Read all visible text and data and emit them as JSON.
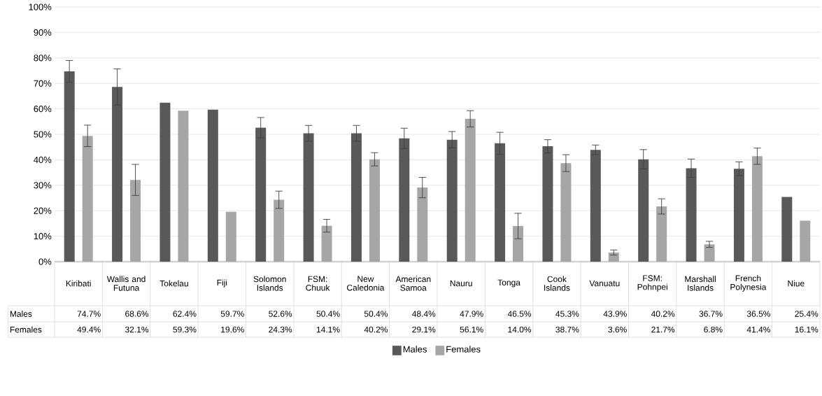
{
  "chart_data": {
    "type": "bar",
    "categories": [
      "Kiribati",
      "Wallis and Futuna",
      "Tokelau",
      "Fiji",
      "Solomon Islands",
      "FSM: Chuuk",
      "New Caledonia",
      "American Samoa",
      "Nauru",
      "Tonga",
      "Cook Islands",
      "Vanuatu",
      "FSM: Pohnpei",
      "Marshall Islands",
      "French Polynesia",
      "Niue"
    ],
    "series": [
      {
        "name": "Males",
        "color": "#595959",
        "values": [
          74.7,
          68.6,
          62.4,
          59.7,
          52.6,
          50.4,
          50.4,
          48.4,
          47.9,
          46.5,
          45.3,
          43.9,
          40.2,
          36.7,
          36.5,
          25.4
        ],
        "errors": [
          4.3,
          7.1,
          null,
          null,
          4.0,
          3.1,
          3.1,
          4.0,
          3.2,
          4.3,
          2.6,
          1.9,
          3.8,
          3.6,
          2.7,
          null
        ],
        "value_labels": [
          "74.7%",
          "68.6%",
          "62.4%",
          "59.7%",
          "52.6%",
          "50.4%",
          "50.4%",
          "48.4%",
          "47.9%",
          "46.5%",
          "45.3%",
          "43.9%",
          "40.2%",
          "36.7%",
          "36.5%",
          "25.4%"
        ]
      },
      {
        "name": "Females",
        "color": "#a6a6a6",
        "values": [
          49.4,
          32.1,
          59.3,
          19.6,
          24.3,
          14.1,
          40.2,
          29.1,
          56.1,
          14.0,
          38.7,
          3.6,
          21.7,
          6.8,
          41.4,
          16.1
        ],
        "errors": [
          4.2,
          6.1,
          null,
          null,
          3.4,
          2.5,
          2.6,
          4.0,
          3.2,
          5.0,
          3.3,
          1.0,
          3.0,
          1.2,
          3.2,
          null
        ],
        "value_labels": [
          "49.4%",
          "32.1%",
          "59.3%",
          "19.6%",
          "24.3%",
          "14.1%",
          "40.2%",
          "29.1%",
          "56.1%",
          "14.0%",
          "38.7%",
          "3.6%",
          "21.7%",
          "6.8%",
          "41.4%",
          "16.1%"
        ]
      }
    ],
    "ylim": [
      0,
      100
    ],
    "yticks": [
      {
        "value": 0,
        "label": "0%"
      },
      {
        "value": 10,
        "label": "10%"
      },
      {
        "value": 20,
        "label": "20%"
      },
      {
        "value": 30,
        "label": "30%"
      },
      {
        "value": 40,
        "label": "40%"
      },
      {
        "value": 50,
        "label": "50%"
      },
      {
        "value": 60,
        "label": "60%"
      },
      {
        "value": 70,
        "label": "70%"
      },
      {
        "value": 80,
        "label": "80%"
      },
      {
        "value": 90,
        "label": "90%"
      },
      {
        "value": 100,
        "label": "100%"
      }
    ],
    "grid": "y",
    "legend": "bottom"
  }
}
